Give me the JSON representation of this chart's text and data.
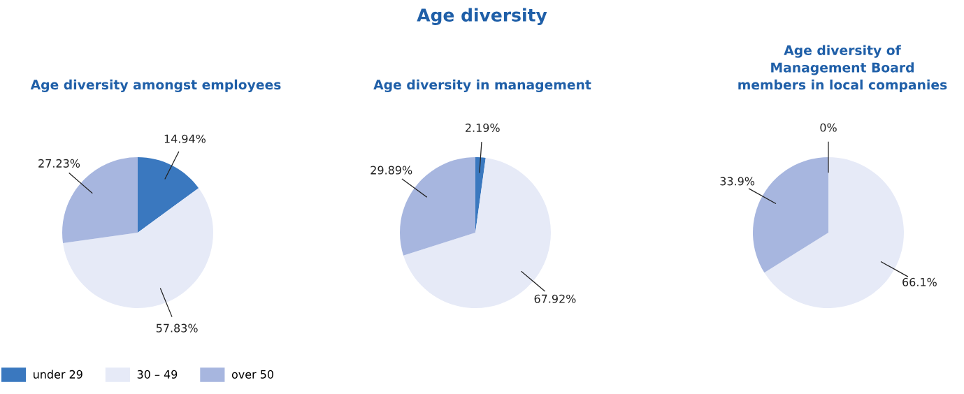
{
  "chart_data": [
    {
      "type": "pie",
      "title": "Age diversity amongst employees",
      "annotations": [
        "Age diversity"
      ],
      "legend": "bottom",
      "categories": [
        "under 29",
        "30 – 49",
        "over 50"
      ],
      "values": [
        14.94,
        57.83,
        27.23
      ],
      "value_labels": [
        "14.94%",
        "57.83%",
        "27.23%"
      ],
      "colors": [
        "#3a78bf",
        "#e6eaf7",
        "#a7b6df"
      ]
    },
    {
      "type": "pie",
      "title": "Age diversity in management",
      "values": [
        2.19,
        67.92,
        29.89
      ],
      "value_labels": [
        "2.19%",
        "67.92%",
        "29.89%"
      ],
      "colors": [
        "#3a78bf",
        "#e6eaf7",
        "#a7b6df"
      ]
    },
    {
      "type": "pie",
      "title": "Age diversity of\nManagement Board\nmembers in local companies",
      "values": [
        0,
        66.1,
        33.9
      ],
      "value_labels": [
        "0%",
        "66.1%",
        "33.9%"
      ],
      "colors": [
        "#3a78bf",
        "#e6eaf7",
        "#a7b6df"
      ]
    }
  ]
}
